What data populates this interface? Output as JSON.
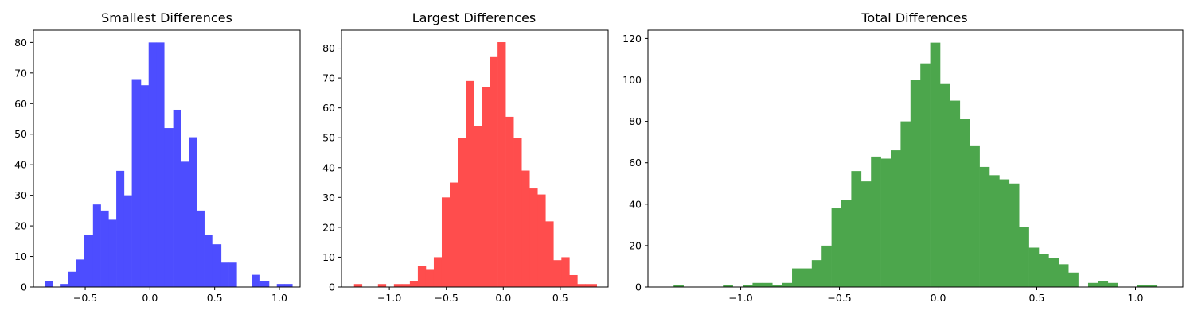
{
  "chart_data": [
    {
      "type": "bar",
      "title": "Smallest Differences",
      "color": "#4d4dff",
      "xlim": [
        -0.9,
        1.16
      ],
      "ylim": [
        0,
        84
      ],
      "xticks": [
        -0.5,
        0.0,
        0.5,
        1.0
      ],
      "xtick_labels": [
        "−0.5",
        "0.0",
        "0.5",
        "1.0"
      ],
      "yticks": [
        0,
        10,
        20,
        30,
        40,
        50,
        60,
        70,
        80
      ],
      "ytick_labels": [
        "0",
        "10",
        "20",
        "30",
        "40",
        "50",
        "60",
        "70",
        "80"
      ],
      "bins": [
        {
          "x0": -0.81,
          "x1": -0.75,
          "count": 2
        },
        {
          "x0": -0.69,
          "x1": -0.63,
          "count": 1
        },
        {
          "x0": -0.63,
          "x1": -0.57,
          "count": 5
        },
        {
          "x0": -0.57,
          "x1": -0.51,
          "count": 9
        },
        {
          "x0": -0.51,
          "x1": -0.44,
          "count": 17
        },
        {
          "x0": -0.44,
          "x1": -0.38,
          "count": 27
        },
        {
          "x0": -0.38,
          "x1": -0.32,
          "count": 25
        },
        {
          "x0": -0.32,
          "x1": -0.26,
          "count": 22
        },
        {
          "x0": -0.26,
          "x1": -0.2,
          "count": 38
        },
        {
          "x0": -0.2,
          "x1": -0.14,
          "count": 30
        },
        {
          "x0": -0.14,
          "x1": -0.07,
          "count": 68
        },
        {
          "x0": -0.07,
          "x1": -0.01,
          "count": 66
        },
        {
          "x0": -0.01,
          "x1": 0.05,
          "count": 80
        },
        {
          "x0": 0.05,
          "x1": 0.11,
          "count": 80
        },
        {
          "x0": 0.11,
          "x1": 0.18,
          "count": 52
        },
        {
          "x0": 0.18,
          "x1": 0.24,
          "count": 58
        },
        {
          "x0": 0.24,
          "x1": 0.3,
          "count": 41
        },
        {
          "x0": 0.3,
          "x1": 0.36,
          "count": 49
        },
        {
          "x0": 0.36,
          "x1": 0.42,
          "count": 25
        },
        {
          "x0": 0.42,
          "x1": 0.48,
          "count": 17
        },
        {
          "x0": 0.48,
          "x1": 0.55,
          "count": 14
        },
        {
          "x0": 0.55,
          "x1": 0.61,
          "count": 8
        },
        {
          "x0": 0.61,
          "x1": 0.67,
          "count": 8
        },
        {
          "x0": 0.79,
          "x1": 0.85,
          "count": 4
        },
        {
          "x0": 0.85,
          "x1": 0.92,
          "count": 2
        },
        {
          "x0": 0.98,
          "x1": 1.04,
          "count": 1
        },
        {
          "x0": 1.04,
          "x1": 1.1,
          "count": 1
        }
      ]
    },
    {
      "type": "bar",
      "title": "Largest Differences",
      "color": "#ff4d4d",
      "xlim": [
        -1.42,
        0.92
      ],
      "ylim": [
        0,
        86
      ],
      "xticks": [
        -1.0,
        -0.5,
        0.0,
        0.5
      ],
      "xtick_labels": [
        "−1.0",
        "−0.5",
        "0.0",
        "0.5"
      ],
      "yticks": [
        0,
        10,
        20,
        30,
        40,
        50,
        60,
        70,
        80
      ],
      "ytick_labels": [
        "0",
        "10",
        "20",
        "30",
        "40",
        "50",
        "60",
        "70",
        "80"
      ],
      "bins": [
        {
          "x0": -1.31,
          "x1": -1.24,
          "count": 1
        },
        {
          "x0": -1.1,
          "x1": -1.03,
          "count": 1
        },
        {
          "x0": -0.96,
          "x1": -0.89,
          "count": 1
        },
        {
          "x0": -0.89,
          "x1": -0.82,
          "count": 1
        },
        {
          "x0": -0.82,
          "x1": -0.75,
          "count": 2
        },
        {
          "x0": -0.75,
          "x1": -0.68,
          "count": 7
        },
        {
          "x0": -0.68,
          "x1": -0.61,
          "count": 6
        },
        {
          "x0": -0.61,
          "x1": -0.54,
          "count": 10
        },
        {
          "x0": -0.54,
          "x1": -0.47,
          "count": 30
        },
        {
          "x0": -0.47,
          "x1": -0.4,
          "count": 35
        },
        {
          "x0": -0.4,
          "x1": -0.33,
          "count": 50
        },
        {
          "x0": -0.33,
          "x1": -0.26,
          "count": 69
        },
        {
          "x0": -0.26,
          "x1": -0.19,
          "count": 54
        },
        {
          "x0": -0.19,
          "x1": -0.12,
          "count": 67
        },
        {
          "x0": -0.12,
          "x1": -0.05,
          "count": 77
        },
        {
          "x0": -0.05,
          "x1": 0.02,
          "count": 82
        },
        {
          "x0": 0.02,
          "x1": 0.09,
          "count": 57
        },
        {
          "x0": 0.09,
          "x1": 0.16,
          "count": 50
        },
        {
          "x0": 0.16,
          "x1": 0.23,
          "count": 39
        },
        {
          "x0": 0.23,
          "x1": 0.3,
          "count": 33
        },
        {
          "x0": 0.3,
          "x1": 0.37,
          "count": 31
        },
        {
          "x0": 0.37,
          "x1": 0.44,
          "count": 22
        },
        {
          "x0": 0.44,
          "x1": 0.51,
          "count": 9
        },
        {
          "x0": 0.51,
          "x1": 0.58,
          "count": 10
        },
        {
          "x0": 0.58,
          "x1": 0.65,
          "count": 4
        },
        {
          "x0": 0.65,
          "x1": 0.72,
          "count": 1
        },
        {
          "x0": 0.72,
          "x1": 0.82,
          "count": 1
        }
      ]
    },
    {
      "type": "bar",
      "title": "Total Differences",
      "color": "#4ca64c",
      "xlim": [
        -1.47,
        1.24
      ],
      "ylim": [
        0,
        124
      ],
      "xticks": [
        -1.0,
        -0.5,
        0.0,
        0.5,
        1.0
      ],
      "xtick_labels": [
        "−1.0",
        "−0.5",
        "0.0",
        "0.5",
        "1.0"
      ],
      "yticks": [
        0,
        20,
        40,
        60,
        80,
        100,
        120
      ],
      "ytick_labels": [
        "0",
        "20",
        "40",
        "60",
        "80",
        "100",
        "120"
      ],
      "bins": [
        {
          "x0": -1.34,
          "x1": -1.29,
          "count": 1
        },
        {
          "x0": -1.09,
          "x1": -1.04,
          "count": 1
        },
        {
          "x0": -0.99,
          "x1": -0.94,
          "count": 1
        },
        {
          "x0": -0.94,
          "x1": -0.89,
          "count": 2
        },
        {
          "x0": -0.89,
          "x1": -0.84,
          "count": 2
        },
        {
          "x0": -0.84,
          "x1": -0.79,
          "count": 1
        },
        {
          "x0": -0.79,
          "x1": -0.74,
          "count": 2
        },
        {
          "x0": -0.74,
          "x1": -0.69,
          "count": 9
        },
        {
          "x0": -0.69,
          "x1": -0.64,
          "count": 9
        },
        {
          "x0": -0.64,
          "x1": -0.59,
          "count": 13
        },
        {
          "x0": -0.59,
          "x1": -0.54,
          "count": 20
        },
        {
          "x0": -0.54,
          "x1": -0.49,
          "count": 38
        },
        {
          "x0": -0.49,
          "x1": -0.44,
          "count": 42
        },
        {
          "x0": -0.44,
          "x1": -0.39,
          "count": 56
        },
        {
          "x0": -0.39,
          "x1": -0.34,
          "count": 51
        },
        {
          "x0": -0.34,
          "x1": -0.29,
          "count": 63
        },
        {
          "x0": -0.29,
          "x1": -0.24,
          "count": 62
        },
        {
          "x0": -0.24,
          "x1": -0.19,
          "count": 66
        },
        {
          "x0": -0.19,
          "x1": -0.14,
          "count": 80
        },
        {
          "x0": -0.14,
          "x1": -0.09,
          "count": 100
        },
        {
          "x0": -0.09,
          "x1": -0.04,
          "count": 108
        },
        {
          "x0": -0.04,
          "x1": 0.01,
          "count": 118
        },
        {
          "x0": 0.01,
          "x1": 0.06,
          "count": 98
        },
        {
          "x0": 0.06,
          "x1": 0.11,
          "count": 90
        },
        {
          "x0": 0.11,
          "x1": 0.16,
          "count": 81
        },
        {
          "x0": 0.16,
          "x1": 0.21,
          "count": 68
        },
        {
          "x0": 0.21,
          "x1": 0.26,
          "count": 58
        },
        {
          "x0": 0.26,
          "x1": 0.31,
          "count": 54
        },
        {
          "x0": 0.31,
          "x1": 0.36,
          "count": 52
        },
        {
          "x0": 0.36,
          "x1": 0.41,
          "count": 50
        },
        {
          "x0": 0.41,
          "x1": 0.46,
          "count": 29
        },
        {
          "x0": 0.46,
          "x1": 0.51,
          "count": 19
        },
        {
          "x0": 0.51,
          "x1": 0.56,
          "count": 16
        },
        {
          "x0": 0.56,
          "x1": 0.61,
          "count": 14
        },
        {
          "x0": 0.61,
          "x1": 0.66,
          "count": 11
        },
        {
          "x0": 0.66,
          "x1": 0.71,
          "count": 7
        },
        {
          "x0": 0.76,
          "x1": 0.81,
          "count": 2
        },
        {
          "x0": 0.81,
          "x1": 0.86,
          "count": 3
        },
        {
          "x0": 0.86,
          "x1": 0.91,
          "count": 2
        },
        {
          "x0": 1.01,
          "x1": 1.06,
          "count": 1
        },
        {
          "x0": 1.06,
          "x1": 1.11,
          "count": 1
        }
      ]
    }
  ]
}
